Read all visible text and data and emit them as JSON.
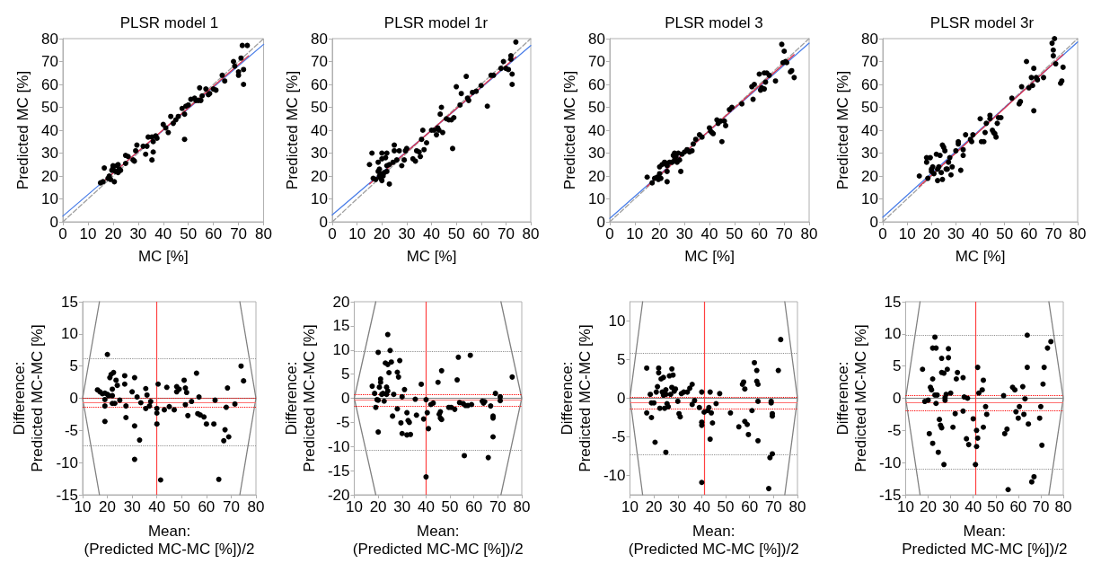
{
  "chart_data": [
    {
      "type": "scatter",
      "title": "PLSR model 1",
      "xlabel": "MC [%]",
      "ylabel": "Predicted MC [%]",
      "xlim": [
        0,
        80
      ],
      "xticks": [
        0,
        10,
        20,
        30,
        40,
        50,
        60,
        70,
        80
      ],
      "ylim": [
        0,
        80
      ],
      "yticks": [
        0,
        10,
        20,
        30,
        40,
        50,
        60,
        70,
        80
      ],
      "series": [
        {
          "type": "line",
          "x": [
            0,
            80
          ],
          "values": [
            0,
            80
          ],
          "color": "#a0a0a0",
          "line_style": "dashed"
        },
        {
          "type": "line",
          "x": [
            0,
            80
          ],
          "values": [
            2.5,
            77.5
          ],
          "color": "#4a7ee8",
          "line_style": "solid"
        },
        {
          "type": "line",
          "x": [
            15,
            74
          ],
          "values": [
            16.5,
            72.5
          ],
          "color": "#e0304a",
          "line_style": "solid"
        },
        {
          "marker": "circle",
          "color": "#000000",
          "x": [
            15,
            16,
            16.5,
            18,
            18.5,
            19,
            19.5,
            20,
            20,
            20.5,
            21,
            21.5,
            22,
            22,
            22.5,
            23,
            25,
            25,
            26,
            28,
            28.5,
            29,
            29.5,
            32,
            33,
            33.5,
            34,
            35.5,
            35.5,
            36,
            36,
            37,
            37.5,
            40,
            41,
            42,
            43,
            44,
            45,
            46,
            47.5,
            48.5,
            48.5,
            49,
            50,
            51,
            52.5,
            53,
            54,
            54.5,
            55,
            55.5,
            57,
            58,
            58.5,
            60,
            61,
            63.5,
            64.5,
            68,
            68.5,
            70,
            70,
            71,
            71.5,
            72,
            72,
            73.5
          ],
          "values": [
            17,
            17.5,
            23.5,
            19,
            20,
            18.5,
            22.5,
            23.5,
            24.5,
            17.5,
            22,
            24.5,
            25,
            21.5,
            23,
            22.5,
            25.5,
            29,
            28.5,
            27,
            26.5,
            31,
            33.5,
            33,
            29.5,
            33,
            37,
            37,
            27,
            35,
            30.5,
            37.5,
            36.5,
            42.5,
            41,
            39,
            46,
            43,
            44.5,
            46,
            49.5,
            36,
            47,
            50.5,
            51,
            53.5,
            54,
            53,
            53,
            58.5,
            53,
            55,
            58,
            55.5,
            56,
            58,
            57.5,
            64,
            61.5,
            70,
            68,
            65.5,
            64,
            71.5,
            77,
            60,
            66.5,
            77
          ]
        }
      ]
    },
    {
      "type": "scatter",
      "title": "PLSR model 1r",
      "xlabel": "MC [%]",
      "ylabel": "Predicted MC [%]",
      "xlim": [
        0,
        80
      ],
      "xticks": [
        0,
        10,
        20,
        30,
        40,
        50,
        60,
        70,
        80
      ],
      "ylim": [
        0,
        80
      ],
      "yticks": [
        0,
        10,
        20,
        30,
        40,
        50,
        60,
        70,
        80
      ],
      "series": [
        {
          "type": "line",
          "x": [
            0,
            80
          ],
          "values": [
            0,
            80
          ],
          "color": "#a0a0a0",
          "line_style": "dashed"
        },
        {
          "type": "line",
          "x": [
            0,
            80
          ],
          "values": [
            3,
            77
          ],
          "color": "#4a7ee8",
          "line_style": "solid"
        },
        {
          "type": "line",
          "x": [
            15,
            74
          ],
          "values": [
            16.5,
            72
          ],
          "color": "#e0304a",
          "line_style": "solid"
        },
        {
          "marker": "circle",
          "color": "#000000",
          "x": [
            15,
            16,
            16.5,
            17.5,
            18.5,
            18.5,
            19,
            19,
            19.5,
            19.5,
            20,
            20,
            20,
            20.5,
            21,
            21.5,
            22,
            22,
            22,
            23,
            23,
            24.5,
            25,
            25,
            26,
            27,
            28,
            29,
            29.5,
            30,
            32.5,
            33.5,
            34,
            35,
            35.5,
            36,
            36.5,
            37,
            38,
            40,
            41,
            42,
            42.5,
            43,
            43.5,
            44,
            44.5,
            46,
            47,
            48,
            48.5,
            49,
            50,
            51.5,
            52,
            54,
            54.5,
            55,
            56.5,
            58,
            60,
            62.5,
            64,
            65,
            68,
            69,
            70,
            71,
            72,
            72,
            72.5,
            72.5,
            74
          ],
          "values": [
            25,
            30,
            19,
            18.5,
            22,
            26,
            20,
            23,
            19,
            21,
            30,
            18,
            27.5,
            20,
            21.5,
            28,
            24.5,
            30,
            22,
            16.5,
            25,
            26,
            33.5,
            31,
            27,
            31,
            24.5,
            27,
            31,
            32,
            27.5,
            26.5,
            31,
            30.5,
            28.5,
            36,
            40,
            31.5,
            34.5,
            40,
            40,
            38,
            41,
            40,
            47,
            50,
            39,
            45,
            44.5,
            44.5,
            32,
            45.5,
            59,
            51,
            56,
            63.5,
            54,
            53,
            56.5,
            57,
            59.5,
            50.5,
            64,
            64,
            67,
            70,
            67,
            66.5,
            72.5,
            71,
            60,
            64.5,
            78.5
          ]
        }
      ]
    },
    {
      "type": "scatter",
      "title": "PLSR model 3",
      "xlabel": "MC [%]",
      "ylabel": "Predicted MC [%]",
      "xlim": [
        0,
        80
      ],
      "xticks": [
        0,
        10,
        20,
        30,
        40,
        50,
        60,
        70,
        80
      ],
      "ylim": [
        0,
        80
      ],
      "yticks": [
        0,
        10,
        20,
        30,
        40,
        50,
        60,
        70,
        80
      ],
      "series": [
        {
          "type": "line",
          "x": [
            0,
            80
          ],
          "values": [
            0,
            80
          ],
          "color": "#a0a0a0",
          "line_style": "dashed"
        },
        {
          "type": "line",
          "x": [
            0,
            80
          ],
          "values": [
            1.5,
            78
          ],
          "color": "#4a7ee8",
          "line_style": "solid"
        },
        {
          "type": "line",
          "x": [
            15,
            74
          ],
          "values": [
            15.5,
            73
          ],
          "color": "#e0304a",
          "line_style": "solid"
        },
        {
          "marker": "circle",
          "color": "#000000",
          "x": [
            15,
            17,
            18,
            19,
            19.5,
            20,
            20,
            20.5,
            21,
            22,
            22.5,
            23,
            23,
            23,
            24,
            25,
            25.5,
            26,
            26,
            26.5,
            27,
            27.5,
            28,
            28.5,
            29,
            30,
            31,
            32,
            33,
            33.5,
            34.5,
            36,
            37,
            40,
            40.5,
            41,
            41.5,
            43,
            43.5,
            44.5,
            45,
            46,
            46.5,
            48,
            49,
            53,
            57,
            57.5,
            58,
            60,
            60.5,
            61,
            62,
            62,
            62.5,
            63,
            64,
            66.5,
            69,
            69.5,
            70,
            70.5,
            71,
            72.5,
            73,
            74
          ],
          "values": [
            19.5,
            17,
            19,
            19.5,
            18.5,
            21,
            24,
            19,
            25,
            26,
            25.5,
            22,
            17.5,
            24.5,
            26,
            26,
            29,
            30,
            27,
            28.5,
            26,
            30,
            27,
            22,
            29.5,
            30.5,
            31.5,
            30.5,
            31,
            34,
            36,
            38,
            37,
            41,
            39.5,
            39,
            38.5,
            44.5,
            43,
            44,
            35,
            44,
            42,
            49,
            50,
            51.5,
            59,
            53.5,
            60,
            64.5,
            57.5,
            58.5,
            65,
            58,
            61,
            65,
            64,
            61.5,
            77.5,
            69.5,
            74.5,
            70,
            69.5,
            65.5,
            66,
            63
          ]
        }
      ]
    },
    {
      "type": "scatter",
      "title": "PLSR model 3r",
      "xlabel": "MC [%]",
      "ylabel": "Predicted MC [%]",
      "xlim": [
        0,
        80
      ],
      "xticks": [
        0,
        10,
        20,
        30,
        40,
        50,
        60,
        70,
        80
      ],
      "ylim": [
        0,
        80
      ],
      "yticks": [
        0,
        10,
        20,
        30,
        40,
        50,
        60,
        70,
        80
      ],
      "series": [
        {
          "type": "line",
          "x": [
            0,
            80
          ],
          "values": [
            0,
            80
          ],
          "color": "#a0a0a0",
          "line_style": "dashed"
        },
        {
          "type": "line",
          "x": [
            0,
            80
          ],
          "values": [
            2,
            78.5
          ],
          "color": "#4a7ee8",
          "line_style": "solid"
        },
        {
          "type": "line",
          "x": [
            15,
            74
          ],
          "values": [
            15.5,
            73
          ],
          "color": "#e0304a",
          "line_style": "solid"
        },
        {
          "marker": "circle",
          "color": "#000000",
          "x": [
            15,
            18,
            18,
            18.5,
            19.5,
            20,
            20,
            20.5,
            21,
            22,
            22.5,
            22.5,
            23,
            23.5,
            24,
            24.5,
            24.5,
            25,
            25.5,
            26,
            26.5,
            27,
            27.5,
            28,
            28.5,
            30,
            31,
            31,
            32,
            33,
            33,
            34,
            36,
            36.5,
            37,
            40,
            40.5,
            41.5,
            42,
            42.5,
            44,
            44,
            45,
            45.5,
            46,
            46.5,
            47,
            47.5,
            48.5,
            53,
            56,
            56.5,
            57,
            59,
            60,
            61,
            61.5,
            62,
            62,
            63,
            63.5,
            66,
            69.5,
            70,
            70,
            70.5,
            71,
            73,
            73.5,
            74
          ],
          "values": [
            20,
            26,
            28,
            19,
            28,
            22,
            23,
            24,
            21,
            29.5,
            18,
            23,
            24,
            29,
            21.5,
            18.5,
            33.5,
            32.5,
            31,
            23,
            23,
            26,
            28,
            20.5,
            24,
            31,
            35,
            34,
            22.5,
            29,
            31.5,
            38,
            36,
            35,
            38,
            45,
            35,
            35,
            39,
            43,
            46.5,
            45,
            40,
            39,
            38.5,
            37,
            43,
            45.5,
            45.5,
            54,
            51.5,
            52.5,
            59,
            70,
            58.5,
            63,
            59.5,
            48.5,
            67,
            63,
            62,
            63,
            78,
            75,
            72.5,
            80,
            69,
            60.5,
            61.5,
            67.5
          ]
        }
      ]
    },
    {
      "type": "scatter",
      "xlabel": "Mean:\n(Predicted MC-MC [%])/2",
      "ylabel": "Difference:\nPredicted MC-MC [%]",
      "xlim": [
        10,
        80
      ],
      "xticks": [
        10,
        20,
        30,
        40,
        50,
        60,
        70,
        80
      ],
      "ylim": [
        -15,
        15
      ],
      "yticks": [
        -15,
        -10,
        -5,
        0,
        5,
        10,
        15
      ],
      "ref_lines": [
        {
          "axis": "y",
          "value": 0,
          "color": "#808080",
          "line_style": "solid"
        },
        {
          "axis": "y",
          "value": -0.6,
          "color": "#ff7070",
          "line_style": "solid"
        },
        {
          "axis": "y",
          "value": 0.1,
          "color": "#ff0000",
          "line_style": "dotted"
        },
        {
          "axis": "y",
          "value": -1.4,
          "color": "#ff0000",
          "line_style": "dotted"
        },
        {
          "axis": "y",
          "value": 6.2,
          "color": "#909090",
          "line_style": "dotted"
        },
        {
          "axis": "y",
          "value": -7.4,
          "color": "#909090",
          "line_style": "dotted"
        },
        {
          "axis": "x",
          "value": 40,
          "color": "#ff4040",
          "line_style": "solid"
        }
      ],
      "series": [
        {
          "type": "line",
          "x": [
            16.8,
            10,
            16.8
          ],
          "values": [
            15,
            0,
            -15
          ],
          "color": "#808080",
          "line_style": "solid"
        },
        {
          "type": "line",
          "x": [
            73.5,
            80,
            73.5
          ],
          "values": [
            15,
            0,
            -15
          ],
          "color": "#808080",
          "line_style": "solid"
        },
        {
          "marker": "circle",
          "color": "#000000",
          "x": [
            16,
            17,
            18,
            19,
            19,
            19,
            19,
            20,
            20,
            20.5,
            21,
            21.5,
            22,
            22,
            22,
            22.5,
            23,
            23.5,
            24,
            25,
            27,
            27,
            27.5,
            27.5,
            30,
            31,
            31,
            31,
            32,
            33,
            33.5,
            35.5,
            35.5,
            36,
            37,
            37.5,
            40,
            40,
            40,
            40.5,
            41.5,
            43,
            44,
            45,
            47,
            48,
            48,
            49,
            51,
            51.5,
            51.5,
            52,
            52.5,
            54,
            56,
            56.5,
            57,
            57.5,
            59,
            60,
            63,
            63.5,
            65,
            67,
            67.5,
            68,
            68.5,
            69,
            71.5,
            74,
            75
          ],
          "values": [
            1.3,
            1,
            0.7,
            0.8,
            -1.2,
            -0.2,
            -3.6,
            0.6,
            6.8,
            0.4,
            3.2,
            3.7,
            0.4,
            1.4,
            -0.8,
            4,
            -0.8,
            2.8,
            2,
            -0.3,
            3.5,
            2.2,
            -1.2,
            -3,
            1,
            3.2,
            -4.3,
            -9.5,
            0.2,
            -6.5,
            -0.7,
            1.5,
            -1.6,
            0.5,
            -1.2,
            -0.5,
            -4,
            -2.3,
            -1.6,
            2.2,
            -12.7,
            -1.8,
            1.7,
            -1.3,
            -1.8,
            1.8,
            1,
            1.4,
            2.8,
            -1,
            1.6,
            0.9,
            -2.7,
            -0.5,
            3.9,
            -2.4,
            0.2,
            -2.6,
            -2.9,
            -4,
            -4,
            -0.3,
            -12.6,
            -6.6,
            -4.9,
            -1.4,
            1.6,
            -6,
            -0.9,
            5,
            2.7
          ]
        }
      ]
    },
    {
      "type": "scatter",
      "xlabel": "Mean:\n(Predicted MC-MC [%])/2",
      "ylabel": "Difference:\nPredicted MC-MC [%]",
      "xlim": [
        10,
        80
      ],
      "xticks": [
        10,
        20,
        30,
        40,
        50,
        60,
        70,
        80
      ],
      "ylim": [
        -20,
        20
      ],
      "yticks": [
        -20,
        -15,
        -10,
        -5,
        0,
        5,
        10,
        15,
        20
      ],
      "ref_lines": [
        {
          "axis": "y",
          "value": 0,
          "color": "#808080",
          "line_style": "solid"
        },
        {
          "axis": "y",
          "value": -0.4,
          "color": "#ff7070",
          "line_style": "solid"
        },
        {
          "axis": "y",
          "value": 0.8,
          "color": "#ff0000",
          "line_style": "dotted"
        },
        {
          "axis": "y",
          "value": -1.6,
          "color": "#ff0000",
          "line_style": "dotted"
        },
        {
          "axis": "y",
          "value": 9.8,
          "color": "#909090",
          "line_style": "dotted"
        },
        {
          "axis": "y",
          "value": -10.7,
          "color": "#909090",
          "line_style": "dotted"
        },
        {
          "axis": "x",
          "value": 40,
          "color": "#ff4040",
          "line_style": "solid"
        }
      ],
      "series": [
        {
          "type": "line",
          "x": [
            19,
            10,
            19
          ],
          "values": [
            20,
            0,
            -20
          ],
          "color": "#808080",
          "line_style": "solid"
        },
        {
          "type": "line",
          "x": [
            71.3,
            80,
            71.3
          ],
          "values": [
            20,
            0,
            -20
          ],
          "color": "#808080",
          "line_style": "solid"
        },
        {
          "marker": "circle",
          "color": "#000000",
          "x": [
            17.5,
            18.5,
            19,
            19.5,
            20,
            20,
            20,
            20.5,
            21,
            21,
            21.5,
            22,
            22.5,
            23,
            23.5,
            23.5,
            24,
            24,
            24,
            24.5,
            25,
            25.5,
            26,
            26.5,
            28,
            28,
            28.5,
            29,
            29.5,
            30,
            30,
            31,
            32,
            32,
            32.5,
            33,
            33.5,
            35.5,
            36,
            38,
            39,
            40,
            40,
            40.5,
            41,
            42,
            43,
            45,
            45.5,
            46,
            46,
            46.5,
            46.5,
            49.5,
            50.5,
            52,
            53,
            53.5,
            54,
            55.5,
            56,
            56.5,
            57.5,
            58.5,
            59,
            63.5,
            64,
            64.5,
            66,
            67,
            68,
            68,
            68,
            69,
            71,
            71,
            76
          ],
          "values": [
            2.5,
            1,
            -1.9,
            -0.3,
            9.5,
            -7,
            -0.4,
            2.3,
            4,
            3.3,
            0.8,
            1,
            -0.6,
            7.3,
            2.3,
            0.8,
            13.2,
            7,
            1.5,
            5.3,
            9.9,
            7.5,
            -3.7,
            0.8,
            5.4,
            -2.2,
            4.4,
            7.8,
            -5.1,
            0.3,
            -7.3,
            1.8,
            -7.6,
            -3,
            -4.6,
            -5,
            -7.5,
            -0.2,
            -3.5,
            2.9,
            -4.3,
            -0.3,
            -16.3,
            -3,
            -6.3,
            -1.3,
            -1,
            3.3,
            -3.3,
            -4.1,
            -2.8,
            5.7,
            -4.4,
            -1.9,
            -1.9,
            -2.3,
            3.8,
            8.5,
            -0.9,
            -1.1,
            -11.9,
            -1.5,
            -1.5,
            8.9,
            -1.3,
            -0.6,
            -1,
            -0.7,
            -12.3,
            -1.6,
            -3.7,
            -4.1,
            -8,
            1,
            0.3,
            -0.5,
            4.4
          ]
        }
      ]
    },
    {
      "type": "scatter",
      "xlabel": "Mean:\n(Predicted MC-MC [%])/2",
      "ylabel": "Difference:\nPredicted MC-MC [%]",
      "xlim": [
        10,
        80
      ],
      "xticks": [
        10,
        20,
        30,
        40,
        50,
        60,
        70,
        80
      ],
      "ylim": [
        -12.5,
        12.5
      ],
      "yticks": [
        -10,
        -5,
        0,
        5,
        10
      ],
      "ref_lines": [
        {
          "axis": "y",
          "value": 0,
          "color": "#808080",
          "line_style": "solid"
        },
        {
          "axis": "y",
          "value": -0.6,
          "color": "#ff7070",
          "line_style": "solid"
        },
        {
          "axis": "y",
          "value": 0.1,
          "color": "#ff0000",
          "line_style": "dotted"
        },
        {
          "axis": "y",
          "value": -1.4,
          "color": "#ff0000",
          "line_style": "dotted"
        },
        {
          "axis": "y",
          "value": 5.9,
          "color": "#909090",
          "line_style": "dotted"
        },
        {
          "axis": "y",
          "value": -7.3,
          "color": "#909090",
          "line_style": "dotted"
        },
        {
          "axis": "x",
          "value": 41,
          "color": "#ff4040",
          "line_style": "solid"
        }
      ],
      "series": [
        {
          "type": "line",
          "x": [
            15.3,
            10,
            15.3
          ],
          "values": [
            12.5,
            0,
            -12.5
          ],
          "color": "#808080",
          "line_style": "solid"
        },
        {
          "type": "line",
          "x": [
            74.7,
            80,
            74.7
          ],
          "values": [
            12.5,
            0,
            -12.5
          ],
          "color": "#808080",
          "line_style": "solid"
        },
        {
          "marker": "circle",
          "color": "#000000",
          "x": [
            17,
            17,
            18.5,
            19,
            19,
            20,
            20.5,
            21,
            21.5,
            22,
            22,
            22.5,
            23,
            23.5,
            24,
            24,
            24.5,
            25,
            25,
            25,
            25.5,
            26,
            26.5,
            27,
            27.5,
            27.5,
            28,
            28.5,
            29,
            30,
            30.5,
            31,
            31.5,
            32.5,
            34,
            35,
            36,
            36,
            37,
            39,
            40,
            40,
            40,
            40,
            41,
            42.5,
            43,
            43.5,
            43.5,
            44,
            44.5,
            46,
            47.5,
            52,
            55.5,
            57,
            57.5,
            58,
            58,
            59,
            59.5,
            61,
            62,
            63,
            63,
            63.5,
            63.5,
            63.5,
            68,
            68.5,
            69,
            69,
            69.5,
            69.5,
            69.5,
            72,
            73
          ],
          "values": [
            3.9,
            -1.9,
            0.5,
            -2.5,
            -0.6,
            -0.6,
            -5.7,
            0.8,
            1.5,
            3.9,
            3.3,
            -1.3,
            2.5,
            0.8,
            2.7,
            0.4,
            -1.3,
            -7,
            1.1,
            0.5,
            -0.7,
            -1.1,
            2.9,
            0.5,
            3.8,
            1.4,
            3,
            0.9,
            1.2,
            -0.4,
            -2,
            -2.4,
            0.6,
            0.8,
            0.8,
            1.3,
            1.8,
            -0.8,
            -0.3,
            -1.2,
            -3.1,
            -3.5,
            -10.9,
            0.8,
            -1.8,
            -1.6,
            -1.2,
            -5.3,
            0.8,
            -1.9,
            -3.2,
            -0.7,
            0.6,
            -1.9,
            -3.7,
            1.8,
            2.1,
            1.2,
            -3,
            -3.4,
            -4.7,
            -1.6,
            4.6,
            3.6,
            2.2,
            1.8,
            -0.4,
            -5.5,
            -11.7,
            -7.7,
            -0.4,
            -0.6,
            -7.2,
            -2,
            -2.3,
            3.6,
            7.6
          ]
        }
      ]
    },
    {
      "type": "scatter",
      "xlabel": "Mean:\nPredicted MC-MC [%])/2",
      "ylabel": "Difference:\nPredicted MC-MC [%]",
      "xlim": [
        10,
        80
      ],
      "xticks": [
        10,
        20,
        30,
        40,
        50,
        60,
        70,
        80
      ],
      "ylim": [
        -15,
        15
      ],
      "yticks": [
        -15,
        -10,
        -5,
        0,
        5,
        10,
        15
      ],
      "ref_lines": [
        {
          "axis": "y",
          "value": 0,
          "color": "#808080",
          "line_style": "solid"
        },
        {
          "axis": "y",
          "value": -0.6,
          "color": "#ff7070",
          "line_style": "solid"
        },
        {
          "axis": "y",
          "value": 0.5,
          "color": "#ff0000",
          "line_style": "dotted"
        },
        {
          "axis": "y",
          "value": -1.9,
          "color": "#ff0000",
          "line_style": "dotted"
        },
        {
          "axis": "y",
          "value": 9.8,
          "color": "#909090",
          "line_style": "dotted"
        },
        {
          "axis": "y",
          "value": -11,
          "color": "#909090",
          "line_style": "dotted"
        },
        {
          "axis": "x",
          "value": 41,
          "color": "#ff4040",
          "line_style": "solid"
        }
      ],
      "series": [
        {
          "type": "line",
          "x": [
            16.4,
            10,
            16.4
          ],
          "values": [
            15,
            0,
            -15
          ],
          "color": "#808080",
          "line_style": "solid"
        },
        {
          "type": "line",
          "x": [
            73.6,
            80,
            73.6
          ],
          "values": [
            15,
            0,
            -15
          ],
          "color": "#808080",
          "line_style": "solid"
        },
        {
          "marker": "circle",
          "color": "#000000",
          "x": [
            17.5,
            18.5,
            20,
            20.5,
            21,
            21.5,
            22,
            22,
            22,
            23,
            23,
            23.5,
            23.5,
            24,
            24.5,
            25,
            25.5,
            26,
            26,
            26,
            27,
            27,
            27.5,
            27.5,
            28,
            28.5,
            29,
            29,
            30,
            31,
            32,
            32.5,
            33,
            35.5,
            35.5,
            36,
            37,
            37.5,
            38,
            40,
            41,
            41.5,
            41.5,
            42,
            42,
            42.5,
            44,
            44.5,
            44.5,
            45.5,
            46,
            53.5,
            54,
            55,
            55.5,
            57.5,
            58.5,
            59,
            60,
            60.5,
            62,
            62.5,
            63,
            64,
            64,
            64.5,
            66,
            67,
            69.5,
            70,
            70.5,
            71,
            71.5,
            73,
            74.5
          ],
          "values": [
            4.5,
            -0.5,
            -0.3,
            -5.5,
            1.7,
            1.3,
            7.8,
            -7,
            3,
            9.5,
            0.5,
            7.8,
            -0.8,
            0.5,
            -8.4,
            -3.3,
            -4.2,
            6.2,
            4,
            -4.6,
            3.9,
            -10.3,
            0.1,
            -0.3,
            0.6,
            4.5,
            6.3,
            7.7,
            0.8,
            -4.5,
            -2.4,
            3,
            4,
            3.2,
            -2,
            0.2,
            -6.3,
            0,
            -7.2,
            -3.2,
            -10.3,
            -5,
            -7.5,
            -6.2,
            4.8,
            0.8,
            1.3,
            2.8,
            -4.5,
            -1.3,
            -2.5,
            0.4,
            -5.5,
            -4.8,
            -14.2,
            1.7,
            1.3,
            -2.1,
            -3.1,
            -1.3,
            1.8,
            -2.5,
            -0.1,
            9.8,
            4.8,
            -4,
            -13,
            -12.2,
            -3.1,
            -1.3,
            -7.3,
            2.2,
            4.8,
            7.8,
            8.8
          ]
        }
      ]
    }
  ]
}
